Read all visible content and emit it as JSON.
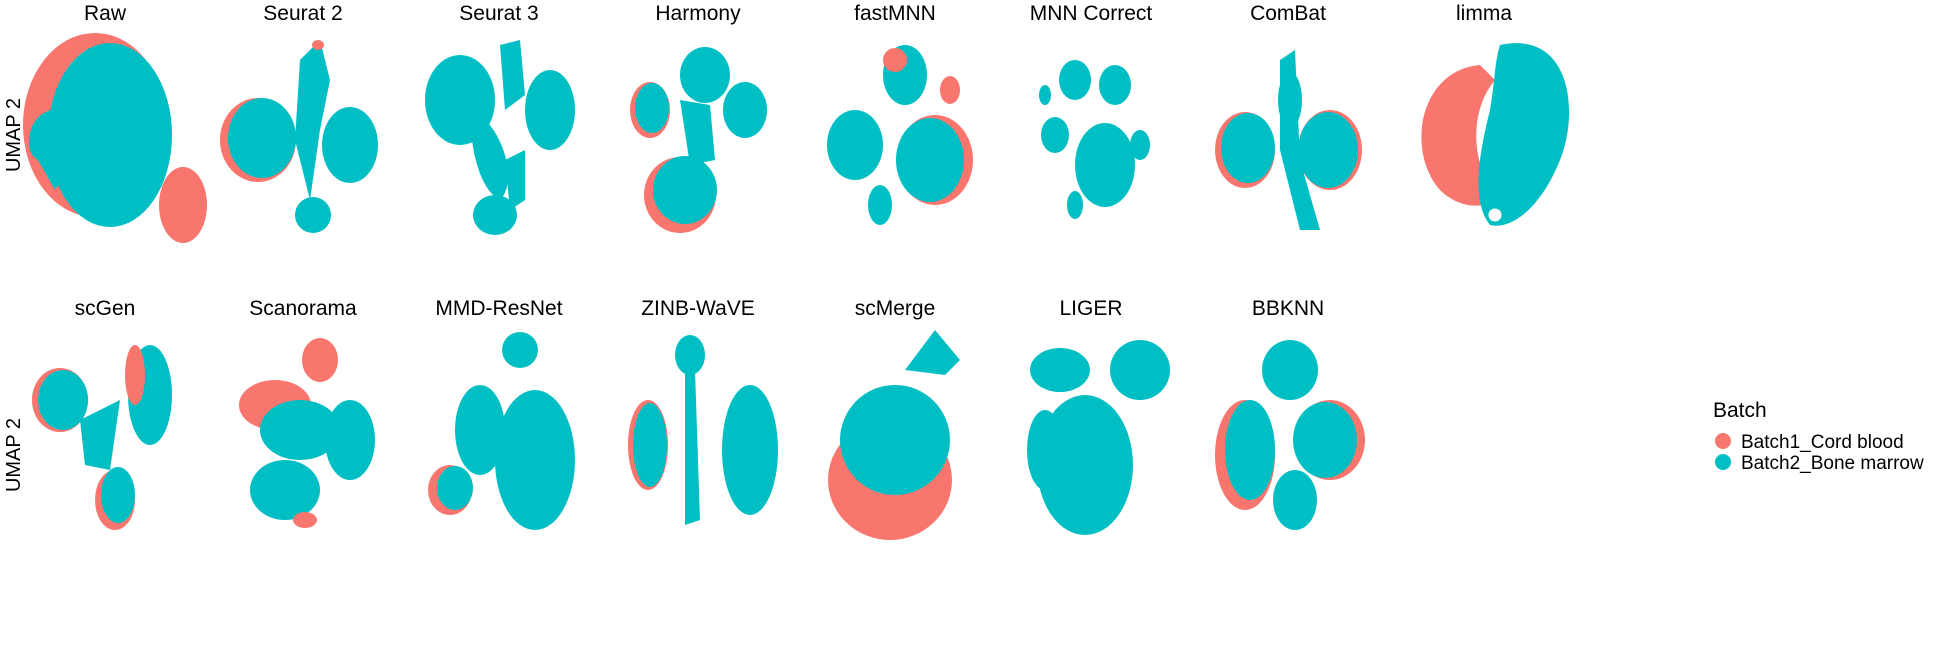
{
  "chart_data": {
    "type": "scatter",
    "ylabel": "UMAP 2",
    "xlabel": "",
    "colors": {
      "batch1": "#F8766D",
      "batch2": "#00BFC4"
    },
    "legend": {
      "title": "Batch",
      "placement": "right",
      "entries": [
        {
          "label": "Batch1_Cord blood",
          "color": "#F8766D"
        },
        {
          "label": "Batch2_Bone marrow",
          "color": "#00BFC4"
        }
      ]
    },
    "panels": [
      {
        "title": "Raw",
        "row": 0,
        "col": 0
      },
      {
        "title": "Seurat 2",
        "row": 0,
        "col": 1
      },
      {
        "title": "Seurat 3",
        "row": 0,
        "col": 2
      },
      {
        "title": "Harmony",
        "row": 0,
        "col": 3
      },
      {
        "title": "fastMNN",
        "row": 0,
        "col": 4
      },
      {
        "title": "MNN Correct",
        "row": 0,
        "col": 5
      },
      {
        "title": "ComBat",
        "row": 0,
        "col": 6
      },
      {
        "title": "limma",
        "row": 0,
        "col": 7
      },
      {
        "title": "scGen",
        "row": 1,
        "col": 0
      },
      {
        "title": "Scanorama",
        "row": 1,
        "col": 1
      },
      {
        "title": "MMD-ResNet",
        "row": 1,
        "col": 2
      },
      {
        "title": "ZINB-WaVE",
        "row": 1,
        "col": 3
      },
      {
        "title": "scMerge",
        "row": 1,
        "col": 4
      },
      {
        "title": "LIGER",
        "row": 1,
        "col": 5
      },
      {
        "title": "BBKNN",
        "row": 1,
        "col": 6
      }
    ]
  }
}
